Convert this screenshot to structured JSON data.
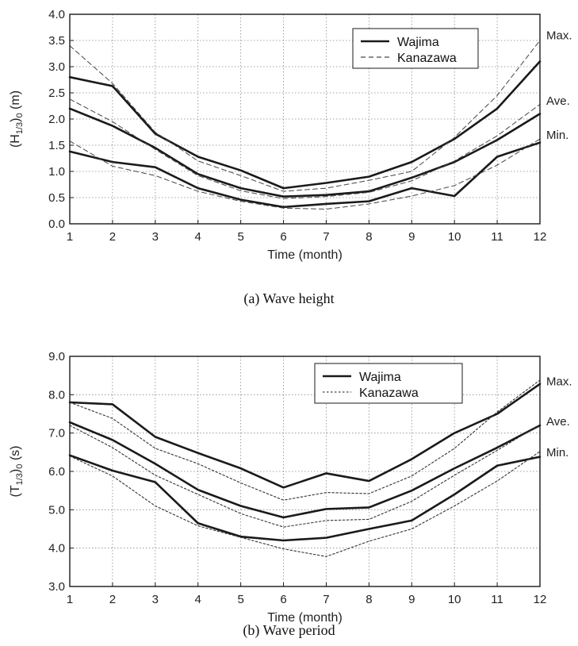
{
  "chart_data": [
    {
      "type": "line",
      "caption": "(a) Wave height",
      "xlabel": "Time (month)",
      "ylabel_main": "(H",
      "ylabel_sub": "1/3",
      "ylabel_tail": ")",
      "ylabel_sub2": "0",
      "ylabel_unit": " (m)",
      "xlim": [
        1,
        12
      ],
      "ylim": [
        0.0,
        4.0
      ],
      "x_ticks": [
        1,
        2,
        3,
        4,
        5,
        6,
        7,
        8,
        9,
        10,
        11,
        12
      ],
      "y_ticks": [
        "0.0",
        "0.5",
        "1.0",
        "1.5",
        "2.0",
        "2.5",
        "3.0",
        "3.5",
        "4.0"
      ],
      "grid": true,
      "legend_position": "top-right",
      "legend": [
        {
          "label": "Wajima",
          "style": "solid"
        },
        {
          "label": "Kanazawa",
          "style": "dashed"
        }
      ],
      "stat_labels": [
        {
          "text": "Max.",
          "y": 3.6
        },
        {
          "text": "Ave.",
          "y": 2.35
        },
        {
          "text": "Min.",
          "y": 1.7
        }
      ],
      "x": [
        1,
        2,
        3,
        4,
        5,
        6,
        7,
        8,
        9,
        10,
        11,
        12
      ],
      "series": [
        {
          "station": "Wajima",
          "stat": "Max",
          "style": "solid",
          "values": [
            2.8,
            2.63,
            1.72,
            1.28,
            1.02,
            0.68,
            0.78,
            0.9,
            1.18,
            1.62,
            2.2,
            3.1
          ]
        },
        {
          "station": "Wajima",
          "stat": "Ave",
          "style": "solid",
          "values": [
            2.2,
            1.87,
            1.45,
            0.95,
            0.68,
            0.52,
            0.55,
            0.62,
            0.88,
            1.18,
            1.6,
            2.1
          ]
        },
        {
          "station": "Wajima",
          "stat": "Min",
          "style": "solid",
          "values": [
            1.38,
            1.18,
            1.08,
            0.68,
            0.46,
            0.32,
            0.38,
            0.43,
            0.68,
            0.53,
            1.28,
            1.55
          ]
        },
        {
          "station": "Kanazawa",
          "stat": "Max",
          "style": "dashed",
          "values": [
            3.4,
            2.68,
            1.75,
            1.2,
            0.92,
            0.62,
            0.68,
            0.83,
            1.0,
            1.65,
            2.45,
            3.5
          ]
        },
        {
          "station": "Kanazawa",
          "stat": "Ave",
          "style": "dashed",
          "values": [
            2.38,
            1.95,
            1.42,
            0.92,
            0.63,
            0.48,
            0.52,
            0.6,
            0.82,
            1.2,
            1.68,
            2.28
          ]
        },
        {
          "station": "Kanazawa",
          "stat": "Min",
          "style": "dashed",
          "values": [
            1.58,
            1.1,
            0.92,
            0.62,
            0.43,
            0.3,
            0.28,
            0.38,
            0.53,
            0.73,
            1.12,
            1.62
          ]
        }
      ]
    },
    {
      "type": "line",
      "caption": "(b) Wave period",
      "xlabel": "Time (month)",
      "ylabel_main": "(T",
      "ylabel_sub": "1/3",
      "ylabel_tail": ")",
      "ylabel_sub2": "0",
      "ylabel_unit": " (s)",
      "xlim": [
        1,
        12
      ],
      "ylim": [
        3.0,
        9.0
      ],
      "x_ticks": [
        1,
        2,
        3,
        4,
        5,
        6,
        7,
        8,
        9,
        10,
        11,
        12
      ],
      "y_ticks": [
        "3.0",
        "4.0",
        "5.0",
        "6.0",
        "7.0",
        "8.0",
        "9.0"
      ],
      "grid": true,
      "legend_position": "top-right",
      "legend": [
        {
          "label": "Wajima",
          "style": "solid"
        },
        {
          "label": "Kanazawa",
          "style": "dotted"
        }
      ],
      "stat_labels": [
        {
          "text": "Max.",
          "y": 8.35
        },
        {
          "text": "Ave.",
          "y": 7.3
        },
        {
          "text": "Min.",
          "y": 6.5
        }
      ],
      "x": [
        1,
        2,
        3,
        4,
        5,
        6,
        7,
        8,
        9,
        10,
        11,
        12
      ],
      "series": [
        {
          "station": "Wajima",
          "stat": "Max",
          "style": "solid",
          "values": [
            7.8,
            7.75,
            6.9,
            6.48,
            6.08,
            5.58,
            5.95,
            5.75,
            6.32,
            7.0,
            7.5,
            8.28
          ]
        },
        {
          "station": "Wajima",
          "stat": "Ave",
          "style": "solid",
          "values": [
            7.28,
            6.82,
            6.2,
            5.52,
            5.1,
            4.8,
            5.02,
            5.06,
            5.5,
            6.08,
            6.62,
            7.2
          ]
        },
        {
          "station": "Wajima",
          "stat": "Min",
          "style": "solid",
          "values": [
            6.42,
            6.02,
            5.72,
            4.65,
            4.3,
            4.2,
            4.27,
            4.5,
            4.72,
            5.4,
            6.15,
            6.38
          ]
        },
        {
          "station": "Kanazawa",
          "stat": "Max",
          "style": "dotted",
          "values": [
            7.8,
            7.38,
            6.6,
            6.2,
            5.7,
            5.25,
            5.45,
            5.42,
            5.88,
            6.6,
            7.55,
            8.38
          ]
        },
        {
          "station": "Kanazawa",
          "stat": "Ave",
          "style": "dotted",
          "values": [
            7.2,
            6.62,
            5.9,
            5.4,
            4.9,
            4.55,
            4.72,
            4.75,
            5.22,
            5.9,
            6.55,
            7.22
          ]
        },
        {
          "station": "Kanazawa",
          "stat": "Min",
          "style": "dotted",
          "values": [
            6.4,
            5.88,
            5.1,
            4.58,
            4.28,
            3.98,
            3.78,
            4.18,
            4.5,
            5.1,
            5.75,
            6.52
          ]
        }
      ]
    }
  ]
}
